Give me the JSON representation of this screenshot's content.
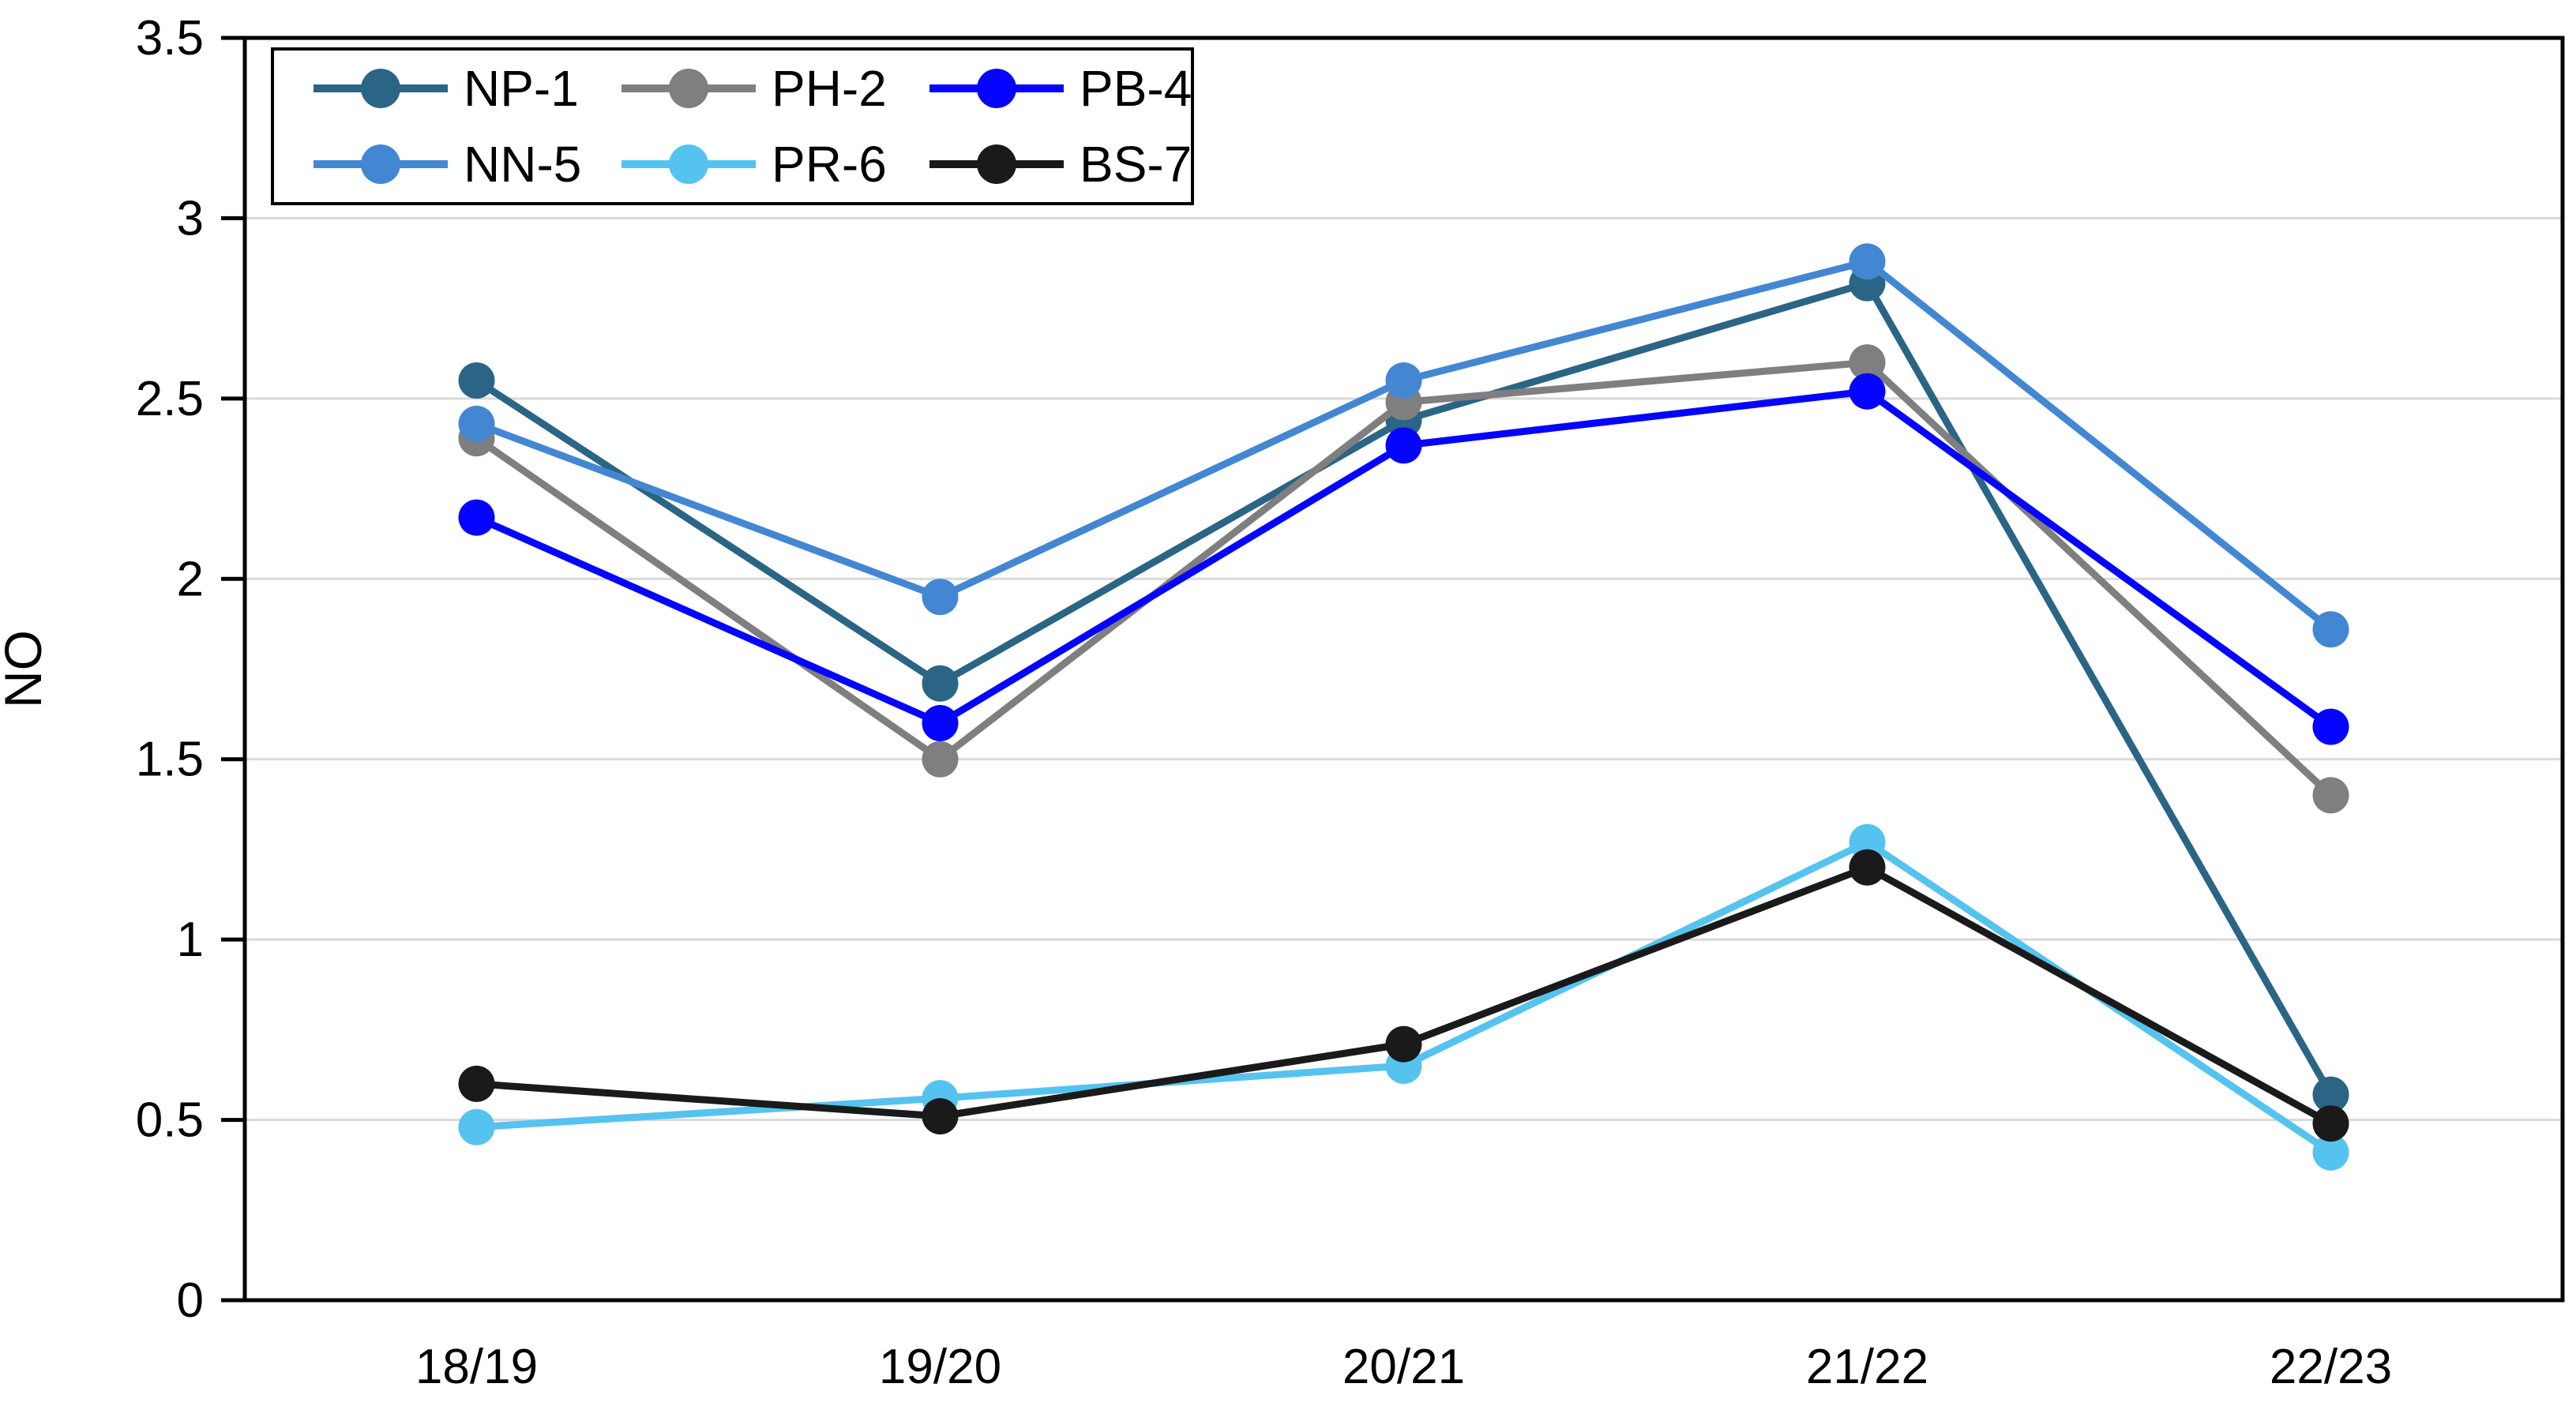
{
  "chart_data": {
    "type": "line",
    "title": "",
    "xlabel": "",
    "ylabel": "NO",
    "categories": [
      "18/19",
      "19/20",
      "20/21",
      "21/22",
      "22/23"
    ],
    "series": [
      {
        "name": "NP-1",
        "color": "#2B6585",
        "values": [
          2.55,
          1.71,
          2.44,
          2.82,
          0.57
        ]
      },
      {
        "name": "PH-2",
        "color": "#7F7F7F",
        "values": [
          2.39,
          1.5,
          2.49,
          2.6,
          1.4
        ]
      },
      {
        "name": "PB-4",
        "color": "#0505FF",
        "values": [
          2.17,
          1.6,
          2.37,
          2.52,
          1.59
        ]
      },
      {
        "name": "NN-5",
        "color": "#4387D3",
        "values": [
          2.43,
          1.95,
          2.55,
          2.88,
          1.86
        ]
      },
      {
        "name": "PR-6",
        "color": "#55C3EF",
        "values": [
          0.48,
          0.56,
          0.65,
          1.27,
          0.41
        ]
      },
      {
        "name": "BS-7",
        "color": "#1A1A1A",
        "values": [
          0.6,
          0.51,
          0.71,
          1.2,
          0.49
        ]
      }
    ],
    "ylim": [
      0,
      3.5
    ],
    "ytick_step": 0.5,
    "ytick_labels": [
      "0",
      "0.5",
      "1",
      "1.5",
      "2",
      "2.5",
      "3",
      "3.5"
    ],
    "grid": "horizontal",
    "grid_color": "#D9D9D9",
    "axis_color": "#000000",
    "plot_border": true,
    "legend_position": "top-left-inside",
    "legend_columns": 3,
    "legend_order": [
      "NP-1",
      "PH-2",
      "PB-4",
      "NN-5",
      "PR-6",
      "BS-7"
    ]
  }
}
